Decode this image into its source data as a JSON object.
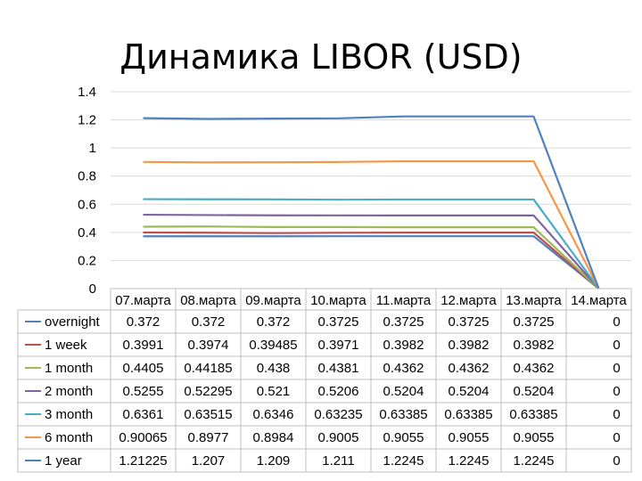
{
  "chart_data": {
    "type": "line",
    "title": "Динамика LIBOR (USD)",
    "categories": [
      "07.марта",
      "08.марта",
      "09.марта",
      "10.марта",
      "11.марта",
      "12.марта",
      "13.марта",
      "14.марта"
    ],
    "ylim": [
      0,
      1.4
    ],
    "yticks": [
      "0",
      "0.2",
      "0.4",
      "0.6",
      "0.8",
      "1",
      "1.2",
      "1.4"
    ],
    "grid": true,
    "legend": "data-table-left",
    "series": [
      {
        "name": "overnight",
        "color": "#4f81bd",
        "values": [
          0.372,
          0.372,
          0.372,
          0.3725,
          0.3725,
          0.3725,
          0.3725,
          0
        ],
        "labels": [
          "0.372",
          "0.372",
          "0.372",
          "0.3725",
          "0.3725",
          "0.3725",
          "0.3725",
          "0"
        ]
      },
      {
        "name": "1 week",
        "color": "#c0504d",
        "values": [
          0.3991,
          0.3974,
          0.39485,
          0.3971,
          0.3982,
          0.3982,
          0.3982,
          0
        ],
        "labels": [
          "0.3991",
          "0.3974",
          "0.39485",
          "0.3971",
          "0.3982",
          "0.3982",
          "0.3982",
          "0"
        ]
      },
      {
        "name": "1 month",
        "color": "#9bbb59",
        "values": [
          0.4405,
          0.44185,
          0.438,
          0.4381,
          0.4362,
          0.4362,
          0.4362,
          0
        ],
        "labels": [
          "0.4405",
          "0.44185",
          "0.438",
          "0.4381",
          "0.4362",
          "0.4362",
          "0.4362",
          "0"
        ]
      },
      {
        "name": "2 month",
        "color": "#8064a2",
        "values": [
          0.5255,
          0.52295,
          0.521,
          0.5206,
          0.5204,
          0.5204,
          0.5204,
          0
        ],
        "labels": [
          "0.5255",
          "0.52295",
          "0.521",
          "0.5206",
          "0.5204",
          "0.5204",
          "0.5204",
          "0"
        ]
      },
      {
        "name": "3 month",
        "color": "#4bacc6",
        "values": [
          0.6361,
          0.63515,
          0.6346,
          0.63235,
          0.63385,
          0.63385,
          0.63385,
          0
        ],
        "labels": [
          "0.6361",
          "0.63515",
          "0.6346",
          "0.63235",
          "0.63385",
          "0.63385",
          "0.63385",
          "0"
        ]
      },
      {
        "name": "6 month",
        "color": "#f79646",
        "values": [
          0.90065,
          0.8977,
          0.8984,
          0.9005,
          0.9055,
          0.9055,
          0.9055,
          0
        ],
        "labels": [
          "0.90065",
          "0.8977",
          "0.8984",
          "0.9005",
          "0.9055",
          "0.9055",
          "0.9055",
          "0"
        ]
      },
      {
        "name": "1 year",
        "color": "#4f81bd",
        "values": [
          1.21225,
          1.207,
          1.209,
          1.211,
          1.2245,
          1.2245,
          1.2245,
          0
        ],
        "labels": [
          "1.21225",
          "1.207",
          "1.209",
          "1.211",
          "1.2245",
          "1.2245",
          "1.2245",
          "0"
        ]
      }
    ]
  }
}
